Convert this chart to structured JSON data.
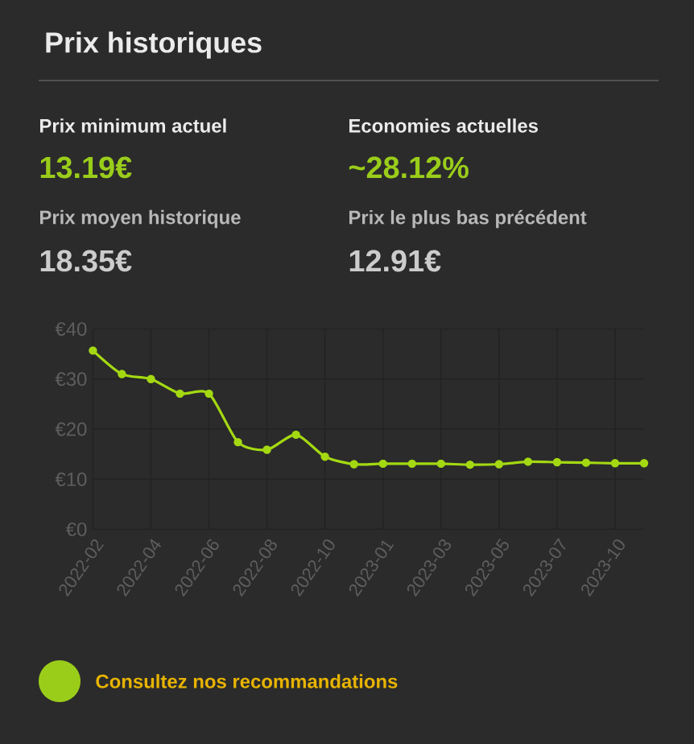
{
  "chart_data": {
    "type": "line",
    "title": "Prix historiques",
    "annotations": [
      "Prix minimum actuel",
      "13.19€",
      "Economies actuelles",
      "~28.12%",
      "Prix moyen historique",
      "18.35€",
      "Prix le plus bas précédent",
      "12.91€",
      "Consultez nos recommandations"
    ],
    "categories": [
      "2022-02",
      null,
      "2022-04",
      null,
      "2022-06",
      null,
      "2022-08",
      null,
      "2022-10",
      null,
      "2023-01",
      null,
      "2023-03",
      null,
      "2023-05",
      null,
      "2023-07",
      null,
      "2023-10",
      null
    ],
    "series": [
      {
        "color": "#a4d912",
        "values": [
          35.7,
          31.0,
          30.0,
          27.1,
          27.1,
          17.4,
          15.9,
          18.9,
          14.5,
          13.0,
          13.1,
          13.1,
          13.1,
          12.9,
          13.0,
          13.5,
          13.4,
          13.3,
          13.2,
          13.2
        ]
      }
    ],
    "ylim": [
      0,
      40
    ],
    "yticks": [
      {
        "value": 0,
        "label": "€0"
      },
      {
        "value": 10,
        "label": "€10"
      },
      {
        "value": 20,
        "label": "€20"
      },
      {
        "value": 30,
        "label": "€30"
      },
      {
        "value": 40,
        "label": "€40"
      }
    ],
    "grid": true,
    "marker": "circle",
    "line_style": "solid"
  }
}
